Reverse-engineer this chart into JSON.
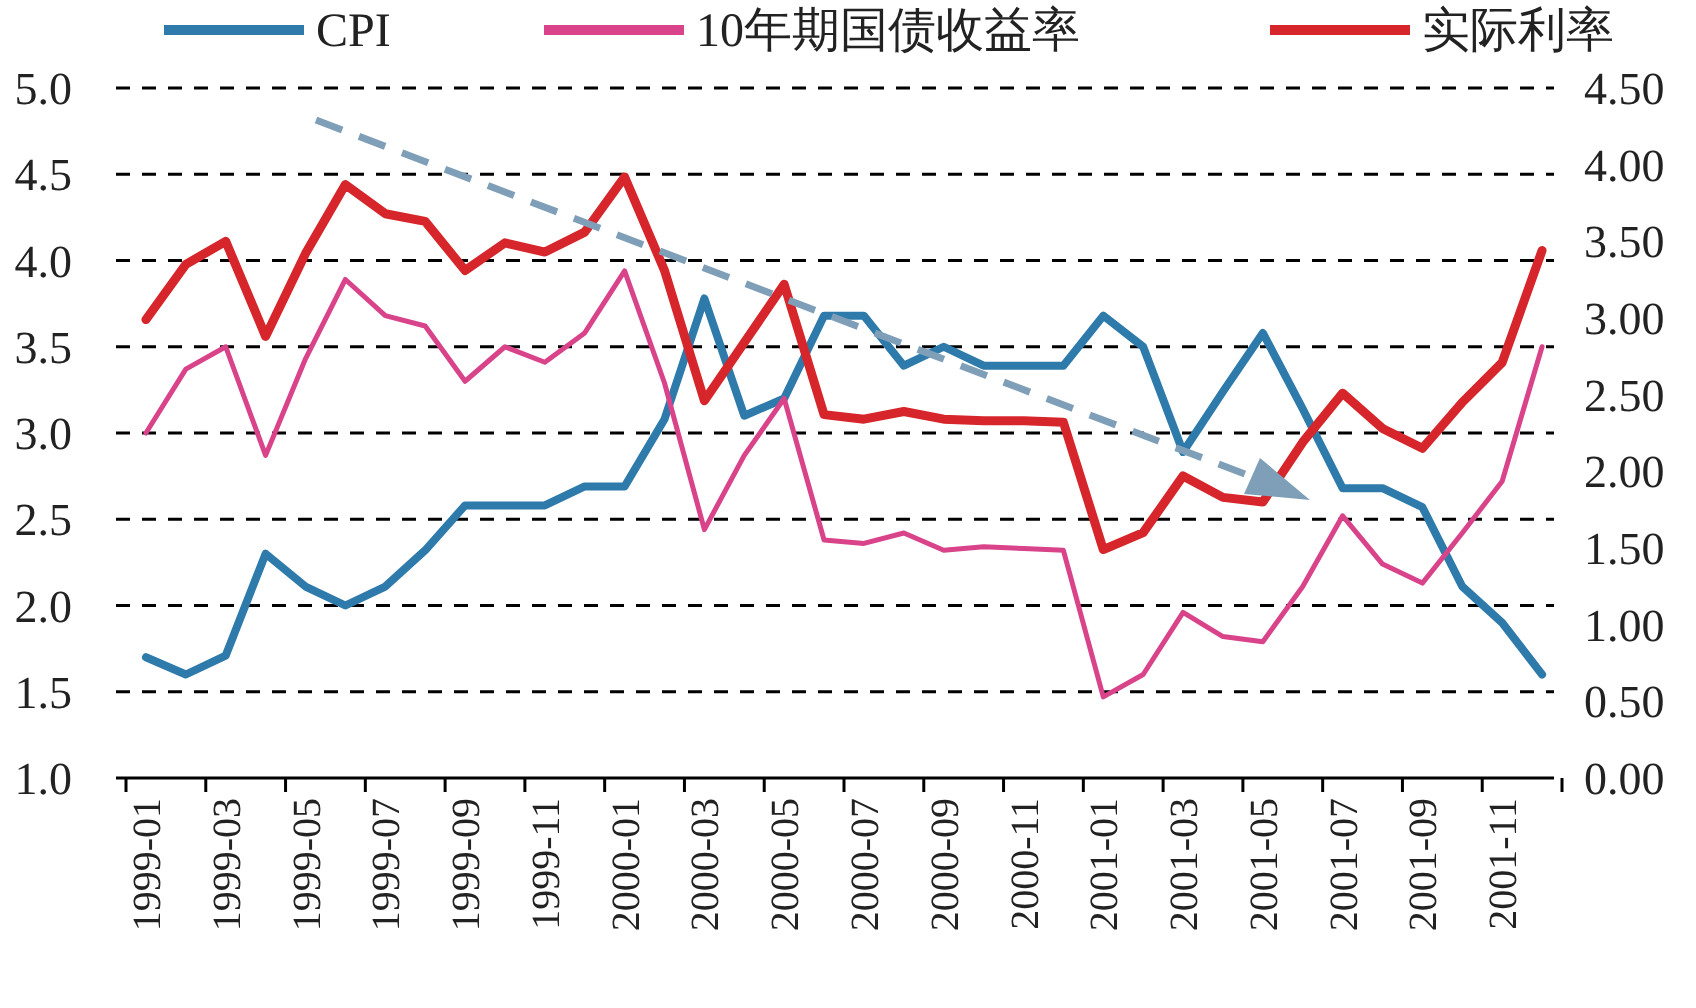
{
  "chart_data": {
    "type": "line",
    "categories": [
      "1999-01",
      null,
      "1999-03",
      null,
      "1999-05",
      null,
      "1999-07",
      null,
      "1999-09",
      null,
      "1999-11",
      null,
      "2000-01",
      null,
      "2000-03",
      null,
      "2000-05",
      null,
      "2000-07",
      null,
      "2000-09",
      null,
      "2000-11",
      null,
      "2001-01",
      null,
      "2001-03",
      null,
      "2001-05",
      null,
      "2001-07",
      null,
      "2001-09",
      null,
      "2001-11",
      null
    ],
    "series": [
      {
        "name": "CPI",
        "color": "#2e7bab",
        "values": [
          1.7,
          1.6,
          1.71,
          2.3,
          2.11,
          2.0,
          2.11,
          2.32,
          2.58,
          2.58,
          2.58,
          2.69,
          2.69,
          3.08,
          3.78,
          3.1,
          3.2,
          3.68,
          3.68,
          3.39,
          3.5,
          3.39,
          3.39,
          3.39,
          3.68,
          3.5,
          2.89,
          3.24,
          3.58,
          3.14,
          2.68,
          2.68,
          2.57,
          2.11,
          1.9,
          1.6
        ]
      },
      {
        "name": "10年期国债收益率",
        "color": "#d9438a",
        "values": [
          3.0,
          3.37,
          3.5,
          2.87,
          3.43,
          3.89,
          3.68,
          3.62,
          3.3,
          3.5,
          3.41,
          3.58,
          3.94,
          3.29,
          2.44,
          2.87,
          3.2,
          2.38,
          2.36,
          2.42,
          2.32,
          2.34,
          2.33,
          2.32,
          1.47,
          1.6,
          1.96,
          1.82,
          1.79,
          2.11,
          2.52,
          2.24,
          2.13,
          2.42,
          2.72,
          3.5
        ]
      },
      {
        "name": "实际利率",
        "color": "#d7262b",
        "axis": "y2",
        "values": [
          2.99,
          3.35,
          3.5,
          2.88,
          3.42,
          3.87,
          3.68,
          3.63,
          3.31,
          3.49,
          3.43,
          3.56,
          3.92,
          3.31,
          2.46,
          2.84,
          3.22,
          2.37,
          2.34,
          2.39,
          2.34,
          2.33,
          2.33,
          2.32,
          1.49,
          1.6,
          1.97,
          1.83,
          1.8,
          2.19,
          2.51,
          2.28,
          2.15,
          2.45,
          2.71,
          3.44
        ]
      }
    ],
    "ylim": [
      1,
      5
    ],
    "yticks": [
      {
        "value": 1,
        "label": "1.0"
      },
      {
        "value": 1.5,
        "label": "1.5"
      },
      {
        "value": 2,
        "label": "2.0"
      },
      {
        "value": 2.5,
        "label": "2.5"
      },
      {
        "value": 3,
        "label": "3.0"
      },
      {
        "value": 3.5,
        "label": "3.5"
      },
      {
        "value": 4,
        "label": "4.0"
      },
      {
        "value": 4.5,
        "label": "4.5"
      },
      {
        "value": 5,
        "label": "5.0"
      }
    ],
    "y2lim": [
      0,
      4.5
    ],
    "y2ticks": [
      {
        "value": 0,
        "label": "0.00"
      },
      {
        "value": 0.5,
        "label": "0.50"
      },
      {
        "value": 1,
        "label": "1.00"
      },
      {
        "value": 1.5,
        "label": "1.50"
      },
      {
        "value": 2,
        "label": "2.00"
      },
      {
        "value": 2.5,
        "label": "2.50"
      },
      {
        "value": 3,
        "label": "3.00"
      },
      {
        "value": 3.5,
        "label": "3.50"
      },
      {
        "value": 4,
        "label": "4.00"
      },
      {
        "value": 4.5,
        "label": "4.50"
      }
    ],
    "grid": "y",
    "legend": "top",
    "marker": "none",
    "line_style": "solid"
  }
}
